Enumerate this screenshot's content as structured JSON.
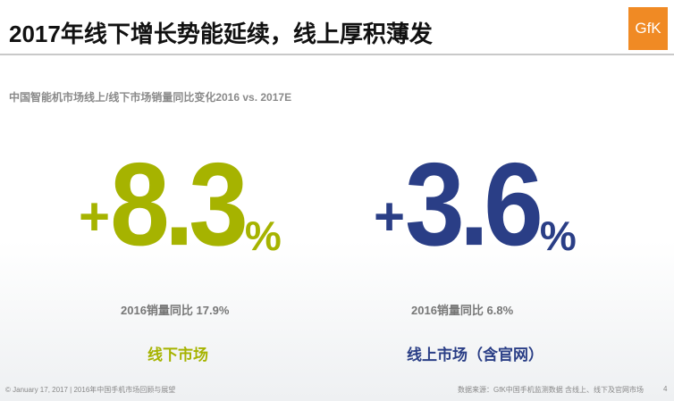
{
  "header": {
    "title": "2017年线下增长势能延续，线上厚积薄发",
    "logo": "GfK"
  },
  "subtitle": "中国智能机市场线上/线下市场销量同比变化2016 vs. 2017E",
  "panels": [
    {
      "sign": "+",
      "number": "8.3",
      "unit": "%",
      "previous": "2016销量同比  17.9%",
      "label": "线下市场"
    },
    {
      "sign": "+",
      "number": "3.6",
      "unit": "%",
      "previous": "2016销量同比  6.8%",
      "label": "线上市场（含官网）"
    }
  ],
  "footer": {
    "left": "© January 17, 2017 | 2016年中国手机市场回顾与展望",
    "source": "数据来源：GfK中国手机监测数据 含线上、线下及官网市场",
    "page": "4"
  }
}
